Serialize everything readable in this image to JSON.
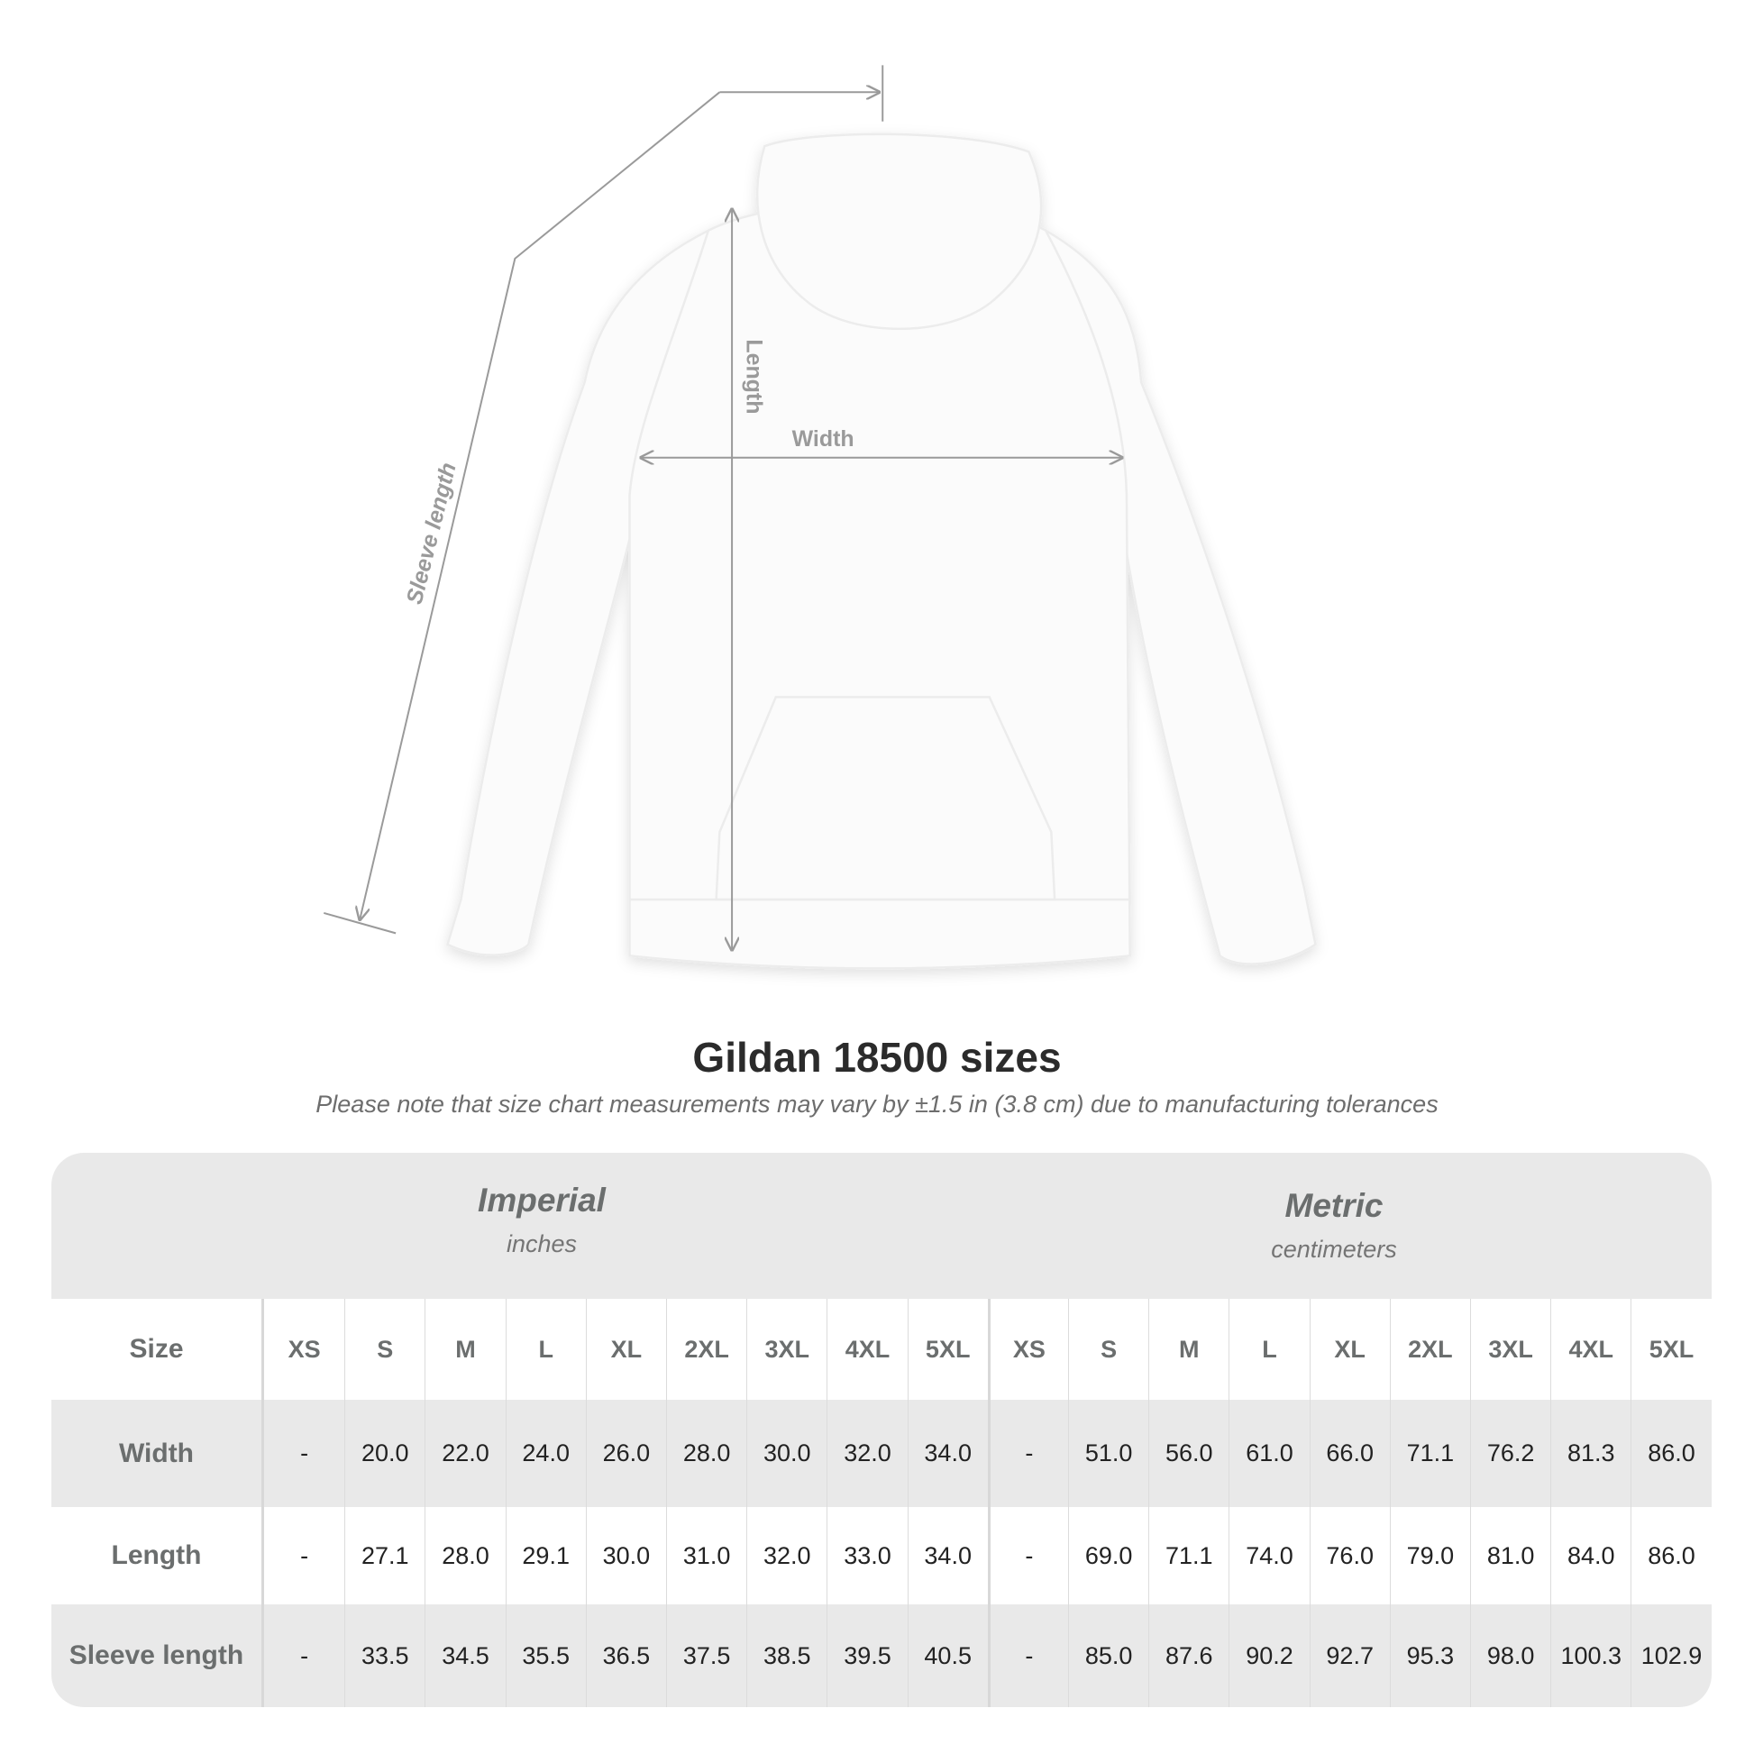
{
  "diagram": {
    "labels": {
      "length": "Length",
      "width": "Width",
      "sleeve": "Sleeve length"
    },
    "line_color": "#9a9a9a",
    "garment_color": "#fbfbfb"
  },
  "title": "Gildan 18500 sizes",
  "note": "Please note that size chart measurements may vary by ±1.5 in (3.8 cm) due to manufacturing tolerances",
  "table": {
    "imperial": {
      "name": "Imperial",
      "unit": "inches"
    },
    "metric": {
      "name": "Metric",
      "unit": "centimeters"
    },
    "size_label": "Size",
    "sizes": [
      "XS",
      "S",
      "M",
      "L",
      "XL",
      "2XL",
      "3XL",
      "4XL",
      "5XL"
    ],
    "rows": [
      {
        "label": "Width",
        "imperial": [
          "-",
          "20.0",
          "22.0",
          "24.0",
          "26.0",
          "28.0",
          "30.0",
          "32.0",
          "34.0"
        ],
        "metric": [
          "-",
          "51.0",
          "56.0",
          "61.0",
          "66.0",
          "71.1",
          "76.2",
          "81.3",
          "86.0"
        ]
      },
      {
        "label": "Length",
        "imperial": [
          "-",
          "27.1",
          "28.0",
          "29.1",
          "30.0",
          "31.0",
          "32.0",
          "33.0",
          "34.0"
        ],
        "metric": [
          "-",
          "69.0",
          "71.1",
          "74.0",
          "76.0",
          "79.0",
          "81.0",
          "84.0",
          "86.0"
        ]
      },
      {
        "label": "Sleeve length",
        "imperial": [
          "-",
          "33.5",
          "34.5",
          "35.5",
          "36.5",
          "37.5",
          "38.5",
          "39.5",
          "40.5"
        ],
        "metric": [
          "-",
          "85.0",
          "87.6",
          "90.2",
          "92.7",
          "95.3",
          "98.0",
          "100.3",
          "102.9"
        ]
      }
    ]
  }
}
